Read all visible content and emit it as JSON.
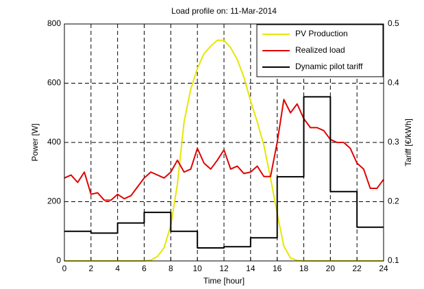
{
  "chart_data": {
    "type": "line",
    "title": "Load profile on: 11-Mar-2014",
    "xlabel": "Time [hour]",
    "ylabel": "Power [W]",
    "y2label": "Tariff [€/kWh]",
    "xlim": [
      0,
      24
    ],
    "xticks": [
      0,
      2,
      4,
      6,
      8,
      10,
      12,
      14,
      16,
      18,
      20,
      22,
      24
    ],
    "ylim": [
      0,
      800
    ],
    "yticks": [
      0,
      200,
      400,
      600,
      800
    ],
    "y2lim": [
      0.1,
      0.5
    ],
    "y2ticks": [
      0.1,
      0.2,
      0.3,
      0.4,
      0.5
    ],
    "grid": true,
    "legend": "upper right",
    "series": [
      {
        "name": "PV Production",
        "color": "#e6e600",
        "x": [
          0,
          0.5,
          1,
          1.5,
          2,
          2.5,
          3,
          3.5,
          4,
          4.5,
          5,
          5.5,
          6,
          6.5,
          7,
          7.5,
          8,
          8.5,
          9,
          9.5,
          10,
          10.5,
          11,
          11.5,
          12,
          12.5,
          13,
          13.5,
          14,
          14.5,
          15,
          15.5,
          16,
          16.5,
          17,
          17.5,
          18,
          18.5,
          19,
          19.5,
          20,
          20.5,
          21,
          21.5,
          22,
          22.5,
          23,
          23.5,
          24
        ],
        "values": [
          0,
          0,
          0,
          0,
          0,
          0,
          0,
          0,
          0,
          0,
          0,
          0,
          0,
          3,
          15,
          45,
          120,
          260,
          470,
          580,
          650,
          700,
          725,
          745,
          745,
          720,
          680,
          620,
          540,
          470,
          390,
          280,
          160,
          50,
          10,
          2,
          0,
          0,
          0,
          0,
          0,
          0,
          0,
          0,
          0,
          0,
          0,
          0,
          0
        ]
      },
      {
        "name": "Realized load",
        "color": "#e00000",
        "x": [
          0,
          0.5,
          1,
          1.5,
          2,
          2.5,
          3,
          3.5,
          4,
          4.5,
          5,
          5.5,
          6,
          6.5,
          7,
          7.5,
          8,
          8.5,
          9,
          9.5,
          10,
          10.5,
          11,
          11.5,
          12,
          12.5,
          13,
          13.5,
          14,
          14.5,
          15,
          15.5,
          16,
          16.5,
          17,
          17.5,
          18,
          18.5,
          19,
          19.5,
          20,
          20.5,
          21,
          21.5,
          22,
          22.5,
          23,
          23.5,
          24
        ],
        "values": [
          280,
          290,
          265,
          300,
          225,
          230,
          205,
          205,
          225,
          210,
          220,
          250,
          280,
          300,
          290,
          280,
          300,
          340,
          300,
          310,
          380,
          330,
          310,
          340,
          375,
          310,
          320,
          295,
          300,
          320,
          285,
          285,
          400,
          545,
          500,
          530,
          480,
          450,
          450,
          440,
          410,
          400,
          400,
          380,
          330,
          310,
          245,
          245,
          275
        ]
      },
      {
        "name": "Dynamic pilot tariff",
        "color": "#000000",
        "axis": "y2",
        "drawstyle": "steps-post",
        "x": [
          0,
          2,
          4,
          6,
          8,
          10,
          12,
          14,
          16,
          18,
          20,
          22,
          24
        ],
        "values": [
          0.15,
          0.147,
          0.164,
          0.182,
          0.15,
          0.122,
          0.124,
          0.139,
          0.242,
          0.377,
          0.217,
          0.157,
          0.157
        ]
      }
    ]
  }
}
